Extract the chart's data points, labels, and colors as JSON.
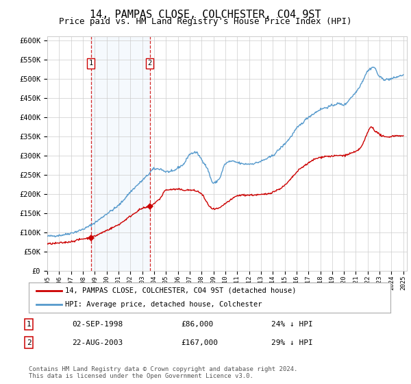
{
  "title": "14, PAMPAS CLOSE, COLCHESTER, CO4 9ST",
  "subtitle": "Price paid vs. HM Land Registry's House Price Index (HPI)",
  "title_fontsize": 11,
  "subtitle_fontsize": 9,
  "ylabel_ticks": [
    "£0",
    "£50K",
    "£100K",
    "£150K",
    "£200K",
    "£250K",
    "£300K",
    "£350K",
    "£400K",
    "£450K",
    "£500K",
    "£550K",
    "£600K"
  ],
  "ytick_values": [
    0,
    50000,
    100000,
    150000,
    200000,
    250000,
    300000,
    350000,
    400000,
    450000,
    500000,
    550000,
    600000
  ],
  "ylim": [
    0,
    610000
  ],
  "hpi_color": "#5599cc",
  "price_color": "#cc0000",
  "sale1_date": 1998.67,
  "sale1_price": 86000,
  "sale2_date": 2003.64,
  "sale2_price": 167000,
  "legend_line1": "14, PAMPAS CLOSE, COLCHESTER, CO4 9ST (detached house)",
  "legend_line2": "HPI: Average price, detached house, Colchester",
  "table_row1_num": "1",
  "table_row1_date": "02-SEP-1998",
  "table_row1_price": "£86,000",
  "table_row1_hpi": "24% ↓ HPI",
  "table_row2_num": "2",
  "table_row2_date": "22-AUG-2003",
  "table_row2_price": "£167,000",
  "table_row2_hpi": "29% ↓ HPI",
  "footer": "Contains HM Land Registry data © Crown copyright and database right 2024.\nThis data is licensed under the Open Government Licence v3.0.",
  "background_color": "#ffffff",
  "grid_color": "#cccccc",
  "shade_color": "#cce0f5"
}
